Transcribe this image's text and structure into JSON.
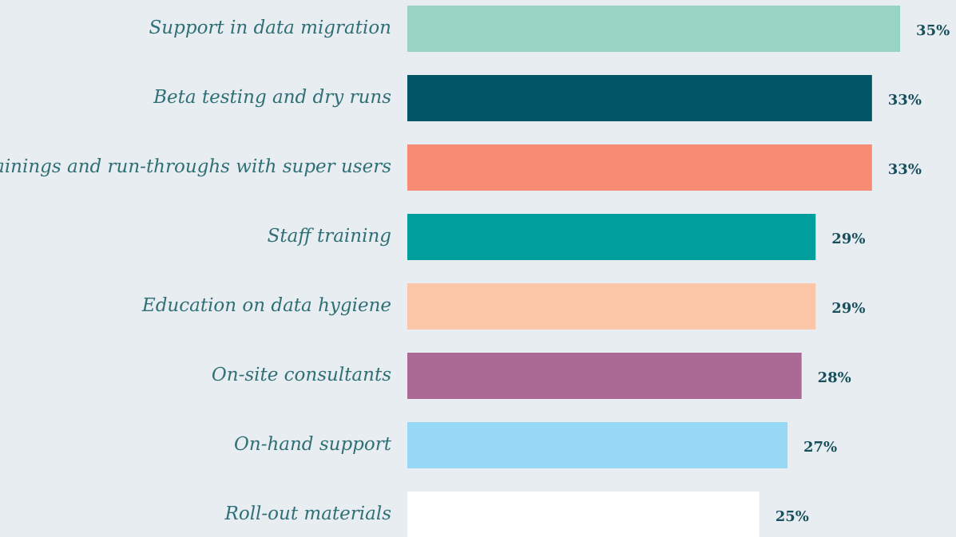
{
  "chart_data": {
    "type": "bar",
    "orientation": "horizontal",
    "categories": [
      "Support in data migration",
      "Beta testing and dry runs",
      "Trainings and run-throughs with super users",
      "Staff training",
      "Education on data hygiene",
      "On-site consultants",
      "On-hand support",
      "Roll-out materials"
    ],
    "values": [
      35,
      33,
      33,
      29,
      29,
      28,
      27,
      25
    ],
    "value_labels": [
      "35%",
      "33%",
      "33%",
      "29%",
      "29%",
      "28%",
      "27%",
      "25%"
    ],
    "colors": [
      "#98d4c3",
      "#005566",
      "#f68c74",
      "#009e9c",
      "#fbc5a7",
      "#ab6a96",
      "#97d8f5",
      "#ffffff"
    ]
  }
}
